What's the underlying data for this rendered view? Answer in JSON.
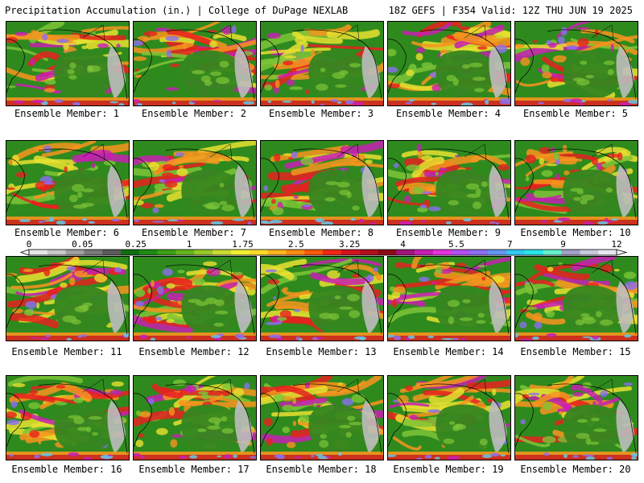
{
  "header": {
    "title": "Precipitation Accumulation (in.) | College of DuPage NEXLAB",
    "run_info": "18Z GEFS | F354 Valid: 12Z THU JUN 19 2025"
  },
  "panels": [
    {
      "label": "Ensemble Member: 1"
    },
    {
      "label": "Ensemble Member: 2"
    },
    {
      "label": "Ensemble Member: 3"
    },
    {
      "label": "Ensemble Member: 4"
    },
    {
      "label": "Ensemble Member: 5"
    },
    {
      "label": "Ensemble Member: 6"
    },
    {
      "label": "Ensemble Member: 7"
    },
    {
      "label": "Ensemble Member: 8"
    },
    {
      "label": "Ensemble Member: 9"
    },
    {
      "label": "Ensemble Member: 10"
    },
    {
      "label": "Ensemble Member: 11"
    },
    {
      "label": "Ensemble Member: 12"
    },
    {
      "label": "Ensemble Member: 13"
    },
    {
      "label": "Ensemble Member: 14"
    },
    {
      "label": "Ensemble Member: 15"
    },
    {
      "label": "Ensemble Member: 16"
    },
    {
      "label": "Ensemble Member: 17"
    },
    {
      "label": "Ensemble Member: 18"
    },
    {
      "label": "Ensemble Member: 19"
    },
    {
      "label": "Ensemble Member: 20"
    }
  ],
  "colorbar": {
    "tick_labels": [
      "0",
      "0.05",
      "0.25",
      "1",
      "1.75",
      "2.5",
      "3.25",
      "4",
      "5.5",
      "7",
      "9",
      "12"
    ],
    "colors": [
      "#e6e6e6",
      "#c8c8c8",
      "#a0a0a0",
      "#7a7a7a",
      "#5a5a5a",
      "#0f6e0f",
      "#1e8c14",
      "#3ca014",
      "#64b41e",
      "#96c828",
      "#c8dc32",
      "#f0f032",
      "#ffdc28",
      "#ffb41e",
      "#ff8c14",
      "#ff5a0a",
      "#f02814",
      "#d2141e",
      "#b40f1e",
      "#8c0a14",
      "#a0147a",
      "#c81eb4",
      "#e632dc",
      "#b450f0",
      "#8c6ef0",
      "#6496f0",
      "#32c8f0",
      "#28e6e6",
      "#64f0c8",
      "#a0a0c8",
      "#c8c8dc",
      "#e6e6f0"
    ]
  },
  "map_palette": {
    "ocean_base": "#2f8a1e",
    "land": "#35861f",
    "light_green": "#7cc437",
    "yellow": "#e8e030",
    "orange": "#f7941e",
    "red": "#e8201e",
    "magenta": "#c81eb4",
    "purple": "#8c6ef0",
    "cyan": "#64c8e6",
    "gray_dry": "#bdbdbd"
  }
}
